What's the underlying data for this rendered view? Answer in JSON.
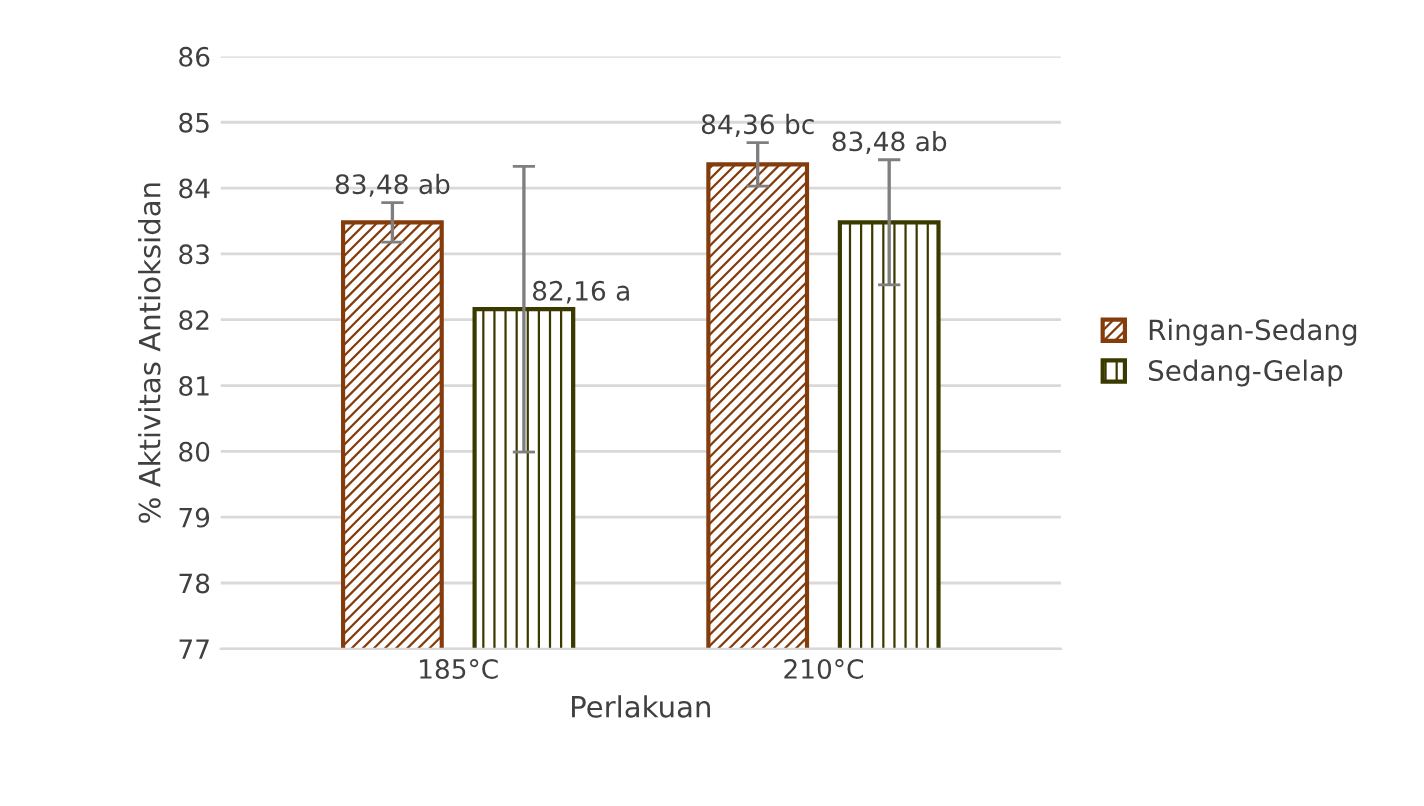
{
  "chart_data": {
    "type": "bar",
    "xlabel": "Perlakuan",
    "ylabel": "% Aktivitas Antioksidan",
    "categories": [
      "185°C",
      "210°C"
    ],
    "series": [
      {
        "name": "Ringan-Sedang",
        "color": "#843c0c",
        "values": [
          83.48,
          84.36
        ],
        "errors": [
          0.3,
          0.33
        ],
        "value_labels": [
          "83,48 ab",
          "84,36 bc"
        ]
      },
      {
        "name": "Sedang-Gelap",
        "color": "#3a3a00",
        "values": [
          82.16,
          83.48
        ],
        "errors": [
          2.17,
          0.95
        ],
        "value_labels": [
          "82,16 a",
          "83,48 ab"
        ]
      }
    ],
    "ylim": [
      77,
      86
    ],
    "yticks": [
      77,
      78,
      79,
      80,
      81,
      82,
      83,
      84,
      85,
      86
    ],
    "grid": "y",
    "legend": "right"
  }
}
